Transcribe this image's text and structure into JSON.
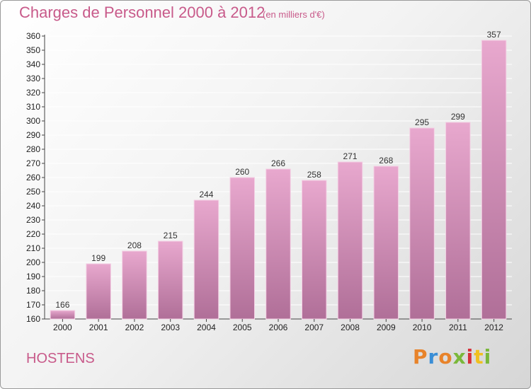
{
  "title": "Charges de Personnel 2000 à 2012",
  "subtitle": "(en milliers d'€)",
  "commune": "HOSTENS",
  "logo": {
    "text": "Proxiti"
  },
  "colors": {
    "bar_top": "#e8a8ce",
    "bar_bottom": "#b06f98",
    "title": "#c85a8a",
    "grid": "#ffffff"
  },
  "chart_data": {
    "type": "bar",
    "title": "Charges de Personnel 2000 à 2012",
    "xlabel": "",
    "ylabel": "",
    "categories": [
      "2000",
      "2001",
      "2002",
      "2003",
      "2004",
      "2005",
      "2006",
      "2007",
      "2008",
      "2009",
      "2010",
      "2011",
      "2012"
    ],
    "values": [
      166,
      199,
      208,
      215,
      244,
      260,
      266,
      258,
      271,
      268,
      295,
      299,
      357
    ],
    "ylim": [
      160,
      360
    ],
    "yticks": [
      160,
      170,
      180,
      190,
      200,
      210,
      220,
      230,
      240,
      250,
      260,
      270,
      280,
      290,
      300,
      310,
      320,
      330,
      340,
      350,
      360
    ],
    "grid": true
  }
}
